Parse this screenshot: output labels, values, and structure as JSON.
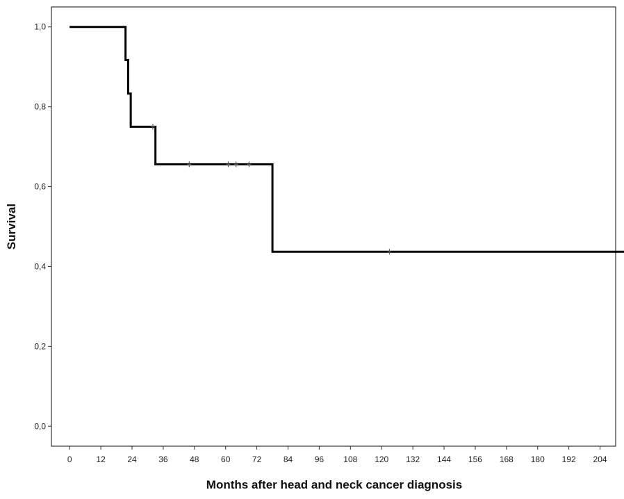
{
  "chart_data": {
    "type": "line",
    "subtype": "kaplan-meier step",
    "title": "",
    "xlabel": "Months after head and neck cancer diagnosis",
    "ylabel": "Survival",
    "xlim": [
      -7,
      210
    ],
    "ylim": [
      -0.05,
      1.05
    ],
    "x_ticks": [
      0,
      12,
      24,
      36,
      48,
      60,
      72,
      84,
      96,
      108,
      120,
      132,
      144,
      156,
      168,
      180,
      192,
      204
    ],
    "x_tick_labels": [
      "0",
      "12",
      "24",
      "36",
      "48",
      "60",
      "72",
      "84",
      "96",
      "108",
      "120",
      "132",
      "144",
      "156",
      "168",
      "180",
      "192",
      "204"
    ],
    "y_ticks": [
      0.0,
      0.2,
      0.4,
      0.6,
      0.8,
      1.0
    ],
    "y_tick_labels": [
      "0,0",
      "0,2",
      "0,4",
      "0,6",
      "0,8",
      "1,0"
    ],
    "grid": false,
    "legend": "none",
    "series": [
      {
        "color": "#000000",
        "steps": [
          {
            "x": 0,
            "y": 1.0
          },
          {
            "x": 21.5,
            "y": 0.917
          },
          {
            "x": 22.5,
            "y": 0.833
          },
          {
            "x": 23.5,
            "y": 0.75
          },
          {
            "x": 33,
            "y": 0.656
          },
          {
            "x": 78,
            "y": 0.437
          }
        ],
        "end_x": 214,
        "censored": [
          {
            "x": 32,
            "y": 0.75
          },
          {
            "x": 46,
            "y": 0.656
          },
          {
            "x": 61,
            "y": 0.656
          },
          {
            "x": 64,
            "y": 0.656
          },
          {
            "x": 69,
            "y": 0.656
          },
          {
            "x": 123,
            "y": 0.437
          },
          {
            "x": 214,
            "y": 0.437
          }
        ]
      }
    ]
  }
}
